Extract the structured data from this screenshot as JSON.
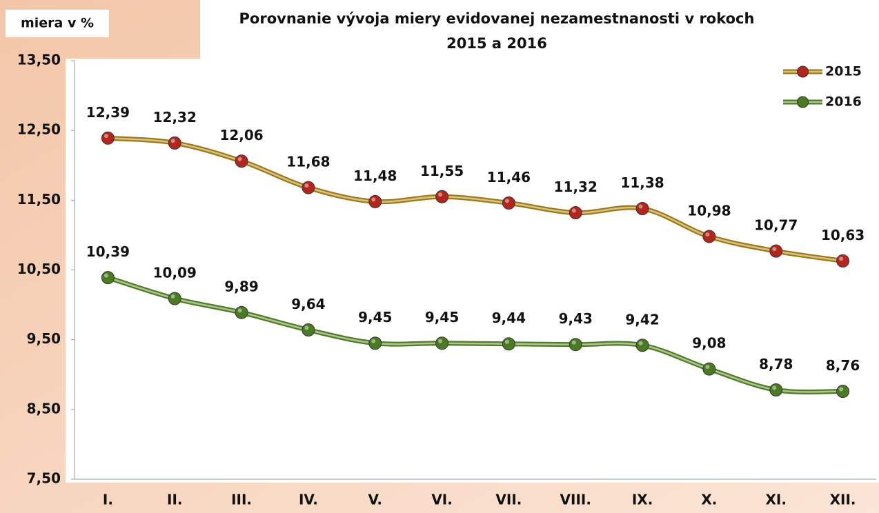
{
  "chart_data": {
    "type": "line",
    "title": [
      "Porovnanie vývoja miery evidovanej nezamestnanosti v rokoch",
      "2015 a 2016"
    ],
    "y_label": "miera v %",
    "categories": [
      "I.",
      "II.",
      "III.",
      "IV.",
      "V.",
      "VI.",
      "VII.",
      "VIII.",
      "IX.",
      "X.",
      "XI.",
      "XII."
    ],
    "series": [
      {
        "name": "2015",
        "color": "#a07a10",
        "marker_color": "#b3261e",
        "values": [
          12.39,
          12.32,
          12.06,
          11.68,
          11.48,
          11.55,
          11.46,
          11.32,
          11.38,
          10.98,
          10.77,
          10.63
        ],
        "value_labels": [
          "12,39",
          "12,32",
          "12,06",
          "11,68",
          "11,48",
          "11,55",
          "11,46",
          "11,32",
          "11,38",
          "10,98",
          "10,77",
          "10,63"
        ]
      },
      {
        "name": "2016",
        "color": "#4f7d22",
        "marker_color": "#4a7a22",
        "values": [
          10.39,
          10.09,
          9.89,
          9.64,
          9.45,
          9.45,
          9.44,
          9.43,
          9.42,
          9.08,
          8.78,
          8.76
        ],
        "value_labels": [
          "10,39",
          "10,09",
          "9,89",
          "9,64",
          "9,45",
          "9,45",
          "9,44",
          "9,43",
          "9,42",
          "9,08",
          "8,78",
          "8,76"
        ]
      }
    ],
    "ylim": [
      7.5,
      13.5
    ],
    "yticks": [
      {
        "value": 7.5,
        "label": "7,50"
      },
      {
        "value": 8.5,
        "label": "8,50"
      },
      {
        "value": 9.5,
        "label": "9,50"
      },
      {
        "value": 10.5,
        "label": "10,50"
      },
      {
        "value": 11.5,
        "label": "11,50"
      },
      {
        "value": 12.5,
        "label": "12,50"
      },
      {
        "value": 13.5,
        "label": "13,50"
      }
    ],
    "smooth": true,
    "legend": "top-right"
  }
}
